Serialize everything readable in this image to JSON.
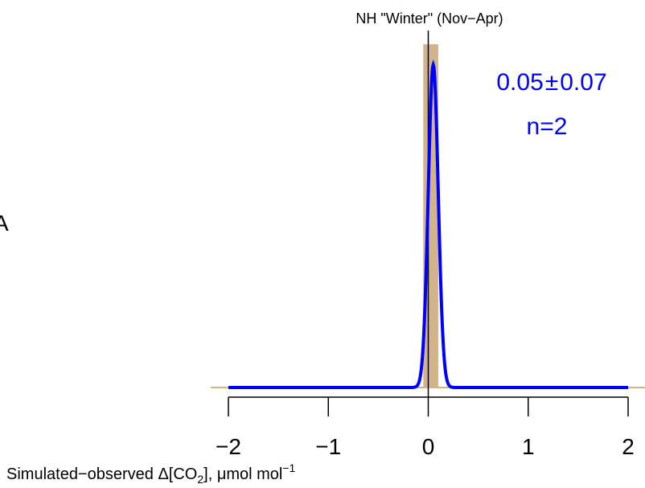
{
  "chart_data": {
    "type": "area",
    "title": "NH \"Winter\" (Nov−Apr)",
    "xlabel": {
      "prefix": "Simulated−observed Δ[CO",
      "sub": "2",
      "middle": "], μmol mol",
      "sup": "−1"
    },
    "xlim": [
      -2,
      2
    ],
    "x_ticks": [
      -2,
      -1,
      0,
      1,
      2
    ],
    "x_tick_labels": [
      "−2",
      "−1",
      "0",
      "1",
      "2"
    ],
    "histogram": {
      "bins": [
        {
          "x0": -0.05,
          "x1": 0.1,
          "density": 1.0
        }
      ],
      "color": "#d2b48c"
    },
    "density_curve": {
      "mean": 0.05,
      "sd": 0.05,
      "peak": 0.94,
      "color": "#0000ff"
    },
    "reference_line_x": 0,
    "annotation": {
      "mean_text": "0.05",
      "pm": "±",
      "sd_text": "0.07",
      "n_text": "n=2"
    },
    "grid": false,
    "legend": "none"
  },
  "colors": {
    "accent": "#0000ff",
    "bar": "#d2b48c",
    "axis": "#000000"
  },
  "left_margin_label": "A"
}
